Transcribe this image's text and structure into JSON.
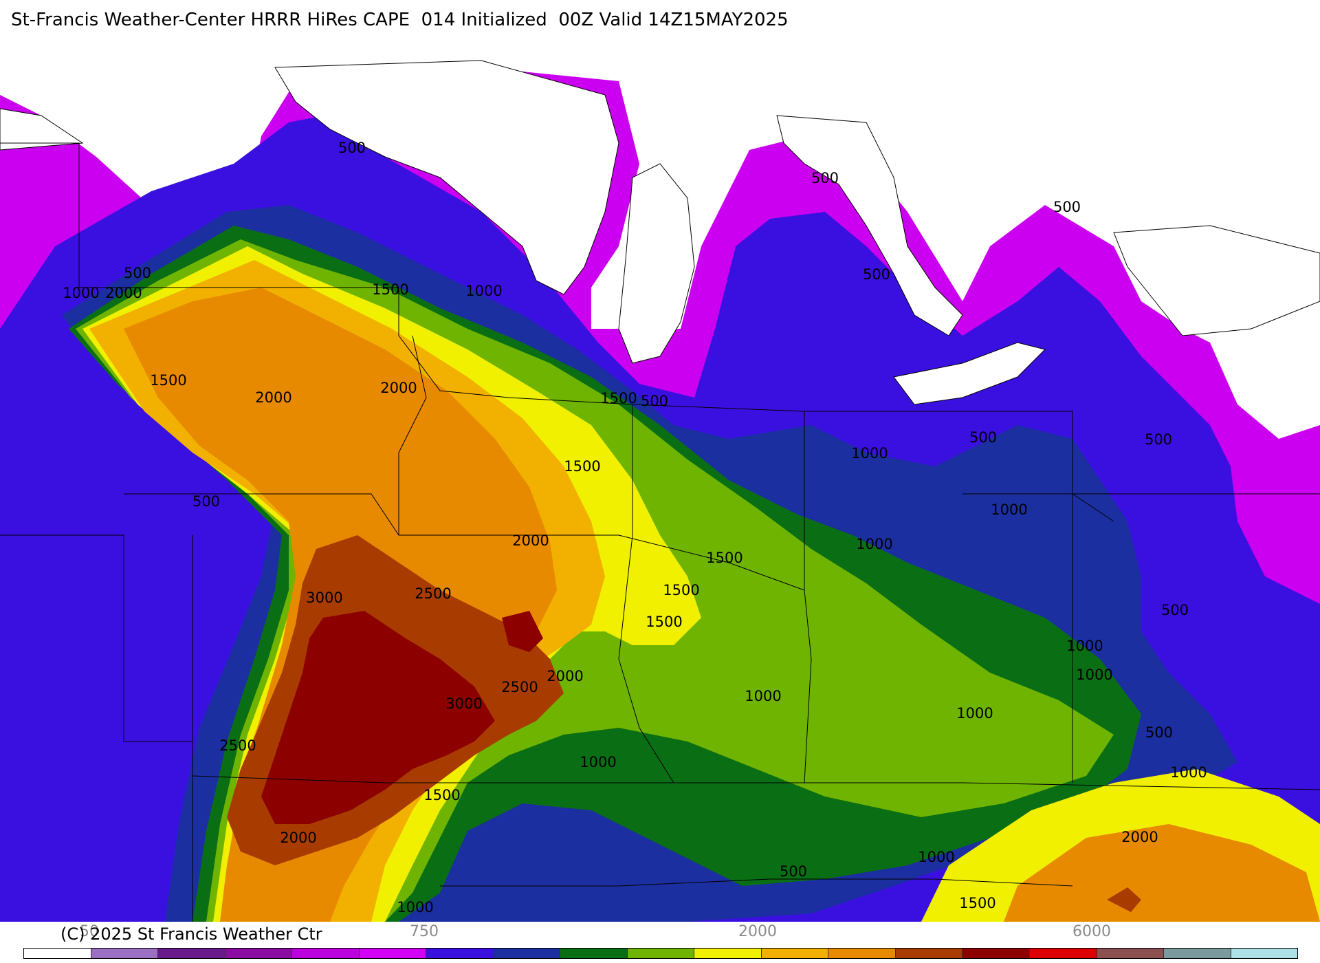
{
  "title": "St-Francis Weather-Center HRRR HiRes CAPE  014 Initialized  00Z Valid 14Z15MAY2025",
  "copyright": "(C) 2025 St Francis Weather Ctr",
  "colorbar": {
    "labels": [
      "50",
      "750",
      "2000",
      "6000"
    ],
    "colors": [
      "#ffffff",
      "#9b6fc4",
      "#6a1a8a",
      "#8a0ca0",
      "#bb00dd",
      "#d200f5",
      "#3a10e0",
      "#1c2fa0",
      "#0a6e14",
      "#6eb400",
      "#f0f000",
      "#f2b000",
      "#e88a00",
      "#a83c00",
      "#8c0000",
      "#dc0000",
      "#8c5050",
      "#7a9aa0",
      "#aee0e8"
    ]
  },
  "contour_labels": [
    {
      "text": "500"
    },
    {
      "text": "500"
    },
    {
      "text": "500"
    },
    {
      "text": "500"
    },
    {
      "text": "500"
    },
    {
      "text": "1000"
    },
    {
      "text": "2000"
    },
    {
      "text": "1500"
    },
    {
      "text": "1000"
    },
    {
      "text": "1500"
    },
    {
      "text": "2000"
    },
    {
      "text": "2000"
    },
    {
      "text": "1500"
    },
    {
      "text": "500"
    },
    {
      "text": "500"
    },
    {
      "text": "1000"
    },
    {
      "text": "500"
    },
    {
      "text": "1500"
    },
    {
      "text": "1000"
    },
    {
      "text": "500"
    },
    {
      "text": "2000"
    },
    {
      "text": "1000"
    },
    {
      "text": "1500"
    },
    {
      "text": "3000"
    },
    {
      "text": "2500"
    },
    {
      "text": "1500"
    },
    {
      "text": "1500"
    },
    {
      "text": "500"
    },
    {
      "text": "3000"
    },
    {
      "text": "2500"
    },
    {
      "text": "2000"
    },
    {
      "text": "1000"
    },
    {
      "text": "1000"
    },
    {
      "text": "1000"
    },
    {
      "text": "1000"
    },
    {
      "text": "2500"
    },
    {
      "text": "1000"
    },
    {
      "text": "500"
    },
    {
      "text": "1500"
    },
    {
      "text": "1000"
    },
    {
      "text": "2000"
    },
    {
      "text": "2000"
    },
    {
      "text": "1000"
    },
    {
      "text": "500"
    },
    {
      "text": "1000"
    },
    {
      "text": "1500"
    }
  ]
}
